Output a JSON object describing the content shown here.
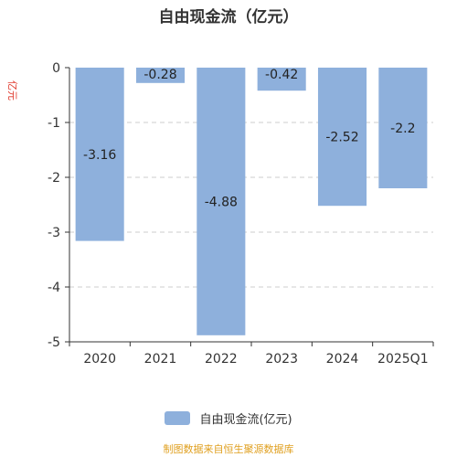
{
  "title": "自由现金流（亿元）",
  "unit_label": "亿元",
  "legend_label": "自由现金流(亿元)",
  "source": "制图数据来自恒生聚源数据库",
  "colors": {
    "bar": "#8eb0dc",
    "axis": "#333333",
    "grid": "#cccccc",
    "unit": "#e03b2e",
    "source": "#e0a020"
  },
  "chart_data": {
    "type": "bar",
    "title": "自由现金流（亿元）",
    "xlabel": "",
    "ylabel": "亿元",
    "categories": [
      "2020",
      "2021",
      "2022",
      "2023",
      "2024",
      "2025Q1"
    ],
    "series": [
      {
        "name": "自由现金流(亿元)",
        "values": [
          -3.16,
          -0.28,
          -4.88,
          -0.42,
          -2.52,
          -2.2
        ]
      }
    ],
    "ylim": [
      -5,
      0
    ],
    "yticks": [
      0,
      -1,
      -2,
      -3,
      -4,
      -5
    ],
    "data_labels": [
      "-3.16",
      "-0.28",
      "-4.88",
      "-0.42",
      "-2.52",
      "-2.2"
    ],
    "grid": true,
    "legend_position": "bottom"
  }
}
